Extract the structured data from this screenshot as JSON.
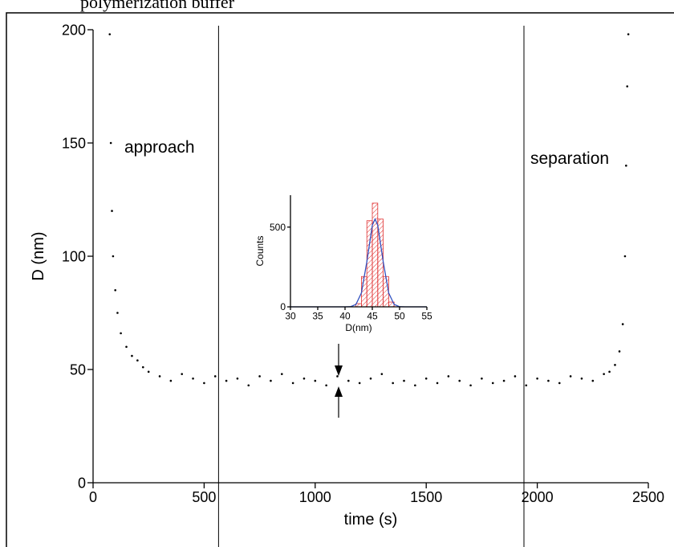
{
  "caption": "polymerization buffer",
  "chart_data": [
    {
      "type": "scatter",
      "xlabel": "time (s)",
      "ylabel": "D (nm)",
      "annotations": [
        "approach",
        "separation"
      ],
      "vlines": [
        565,
        1940
      ],
      "color": "#000000",
      "xlim": [
        0,
        2500
      ],
      "ylim": [
        0,
        200
      ],
      "xticks": [
        0,
        500,
        1000,
        1500,
        2000,
        2500
      ],
      "yticks": [
        0,
        50,
        100,
        150,
        200
      ],
      "x": [
        75,
        80,
        85,
        90,
        100,
        110,
        125,
        150,
        175,
        200,
        225,
        250,
        300,
        350,
        400,
        450,
        500,
        550,
        600,
        650,
        700,
        750,
        800,
        850,
        900,
        950,
        1000,
        1050,
        1100,
        1150,
        1200,
        1250,
        1300,
        1350,
        1400,
        1450,
        1500,
        1550,
        1600,
        1650,
        1700,
        1750,
        1800,
        1850,
        1900,
        1950,
        2000,
        2050,
        2100,
        2150,
        2200,
        2250,
        2300,
        2325,
        2350,
        2370,
        2385,
        2395,
        2400,
        2405,
        2410
      ],
      "values": [
        198,
        150,
        120,
        100,
        85,
        75,
        66,
        60,
        56,
        54,
        51,
        49,
        47,
        45,
        48,
        46,
        44,
        47,
        45,
        46,
        43,
        47,
        45,
        48,
        44,
        46,
        45,
        43,
        47,
        45,
        44,
        46,
        48,
        44,
        45,
        43,
        46,
        44,
        47,
        45,
        43,
        46,
        44,
        45,
        47,
        43,
        46,
        45,
        44,
        47,
        46,
        45,
        48,
        49,
        52,
        58,
        70,
        100,
        140,
        175,
        198
      ]
    },
    {
      "type": "histogram",
      "xlabel": "D(nm)",
      "ylabel": "Counts",
      "color": "#e03030",
      "bins": [
        42,
        43,
        44,
        45,
        46,
        47,
        48,
        49
      ],
      "counts": [
        20,
        190,
        540,
        650,
        550,
        190,
        30
      ],
      "fit": {
        "color": "#3050c0",
        "x": [
          30,
          31,
          32,
          33,
          34,
          35,
          36,
          37,
          38,
          39,
          40,
          41,
          42,
          43,
          44,
          45,
          45.5,
          46,
          47,
          48,
          49,
          50,
          51,
          52,
          53,
          54,
          55
        ],
        "values": [
          0,
          0,
          0,
          0,
          0,
          0,
          0,
          0,
          0,
          0,
          0,
          1,
          15,
          87,
          283,
          511,
          550,
          511,
          283,
          87,
          15,
          1,
          0,
          0,
          0,
          0,
          0
        ]
      },
      "xlim": [
        30,
        55
      ],
      "ylim": [
        0,
        700
      ],
      "xticks": [
        30,
        35,
        40,
        45,
        50,
        55
      ],
      "yticks": [
        0,
        500
      ]
    }
  ]
}
